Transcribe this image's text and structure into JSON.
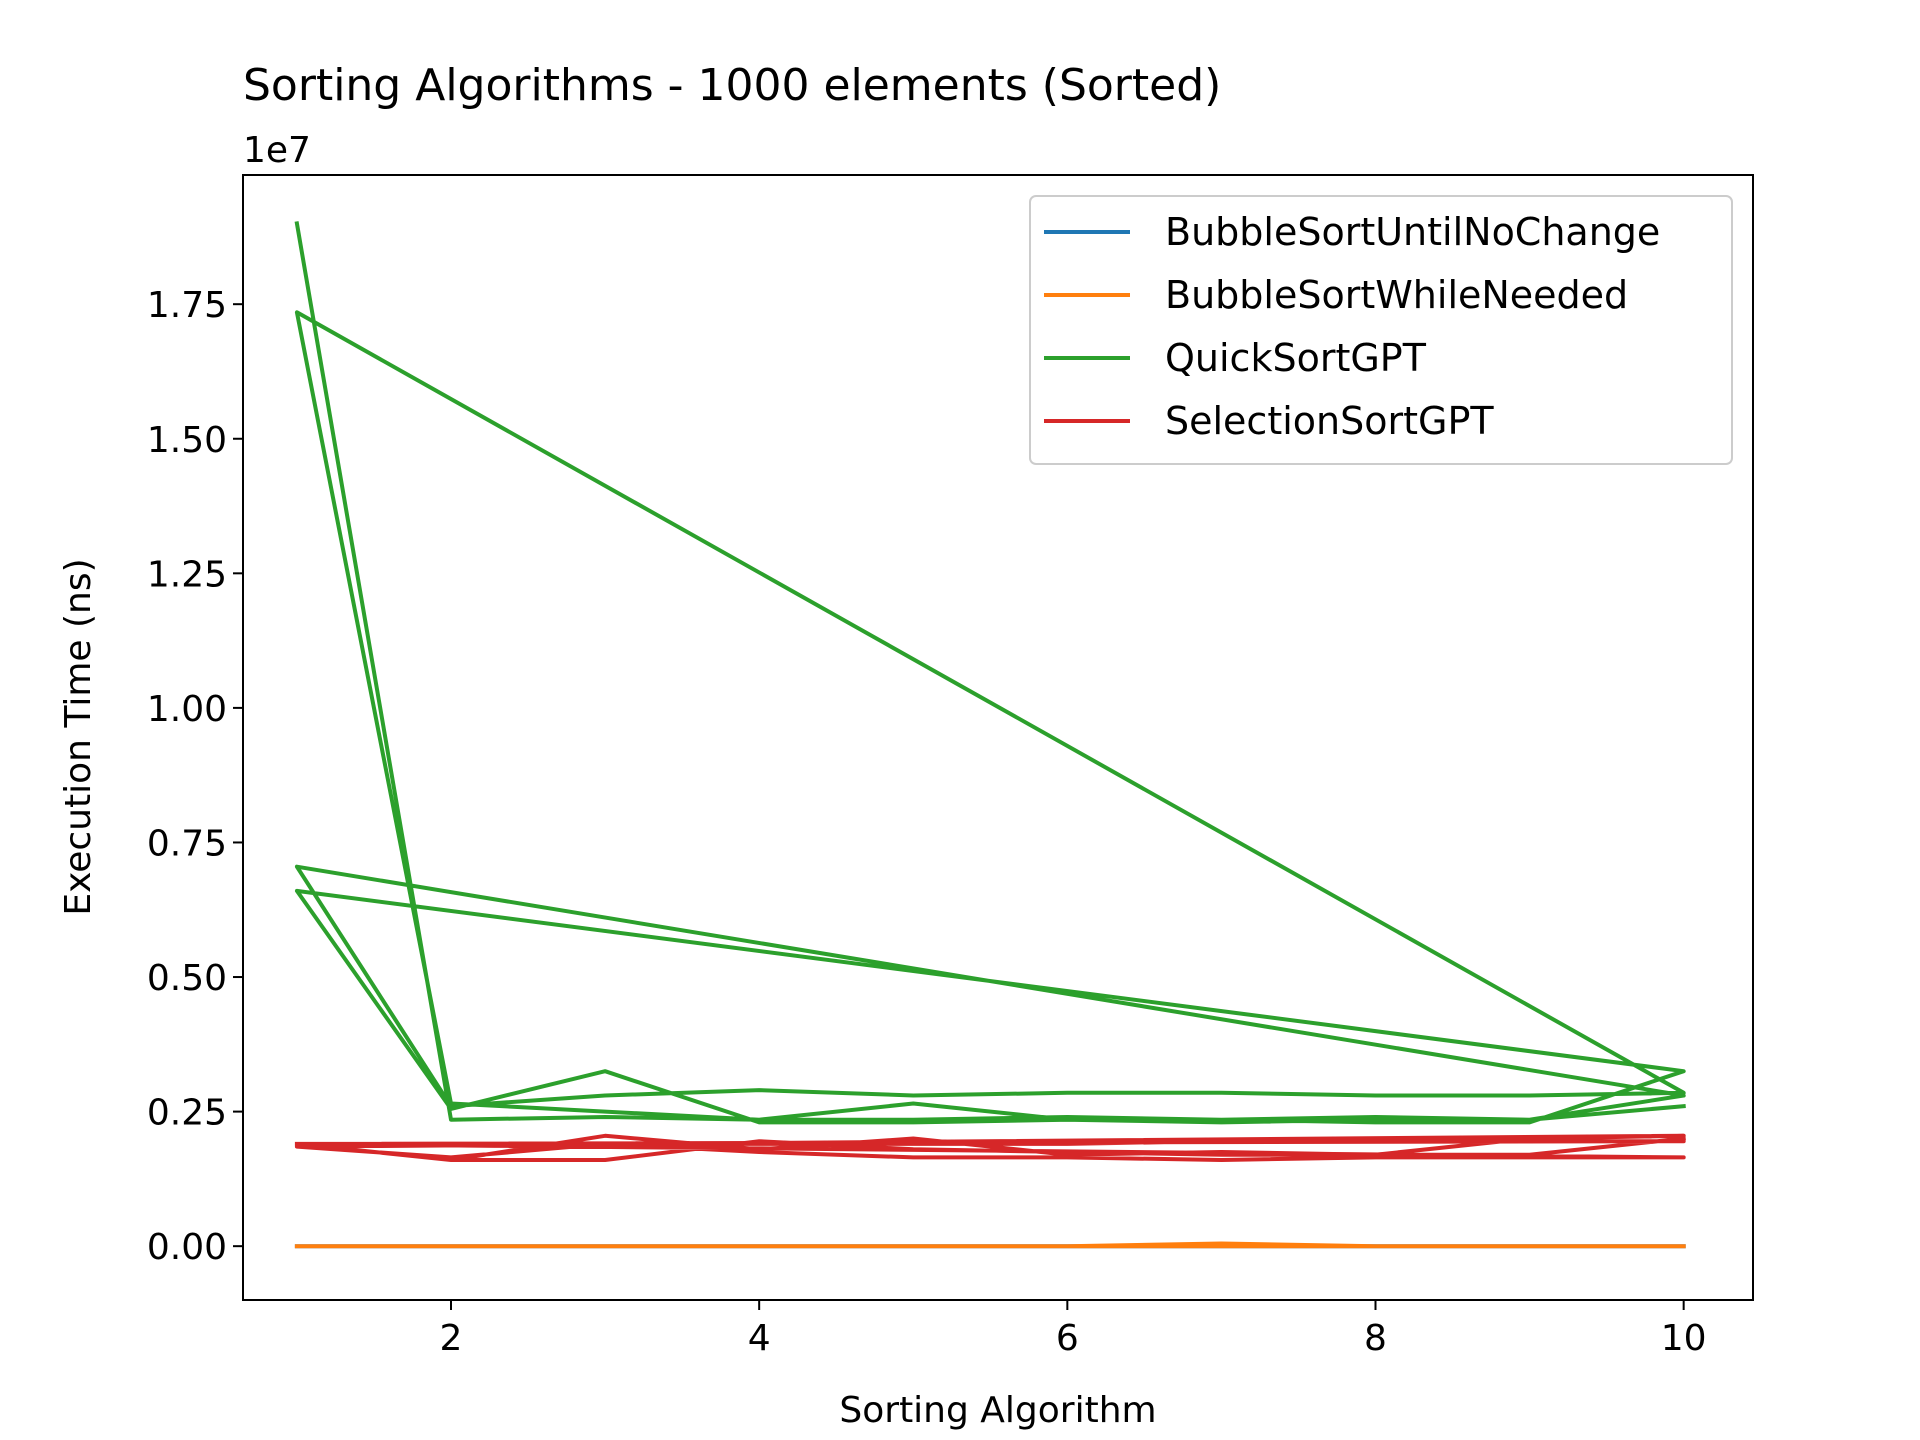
{
  "chart_data": {
    "type": "line",
    "title": "Sorting Algorithms - 1000 elements (Sorted)",
    "xlabel": "Sorting Algorithm",
    "ylabel": "Execution Time (ns)",
    "y_offset_label": "1e7",
    "xlim": [
      0.65,
      10.45
    ],
    "ylim": [
      -0.1,
      1.99
    ],
    "x_ticks": [
      2,
      4,
      6,
      8,
      10
    ],
    "x_tick_labels": [
      "2",
      "4",
      "6",
      "8",
      "10"
    ],
    "y_ticks": [
      0.0,
      0.25,
      0.5,
      0.75,
      1.0,
      1.25,
      1.5,
      1.75
    ],
    "y_tick_labels": [
      "0.00",
      "0.25",
      "0.50",
      "0.75",
      "1.00",
      "1.25",
      "1.50",
      "1.75"
    ],
    "y_unit_multiplier": 10000000,
    "grid": false,
    "legend_position": "top-right",
    "series": [
      {
        "name": "BubbleSortUntilNoChange",
        "color": "#1f77b4",
        "x": [
          1,
          2,
          3,
          4,
          5,
          6,
          7,
          8,
          9,
          10,
          1,
          2,
          3,
          4,
          5,
          6,
          7,
          8,
          9,
          10
        ],
        "y": [
          0.0,
          0.0,
          0.0,
          0.0,
          0.0,
          0.0,
          0.0,
          0.0,
          0.0,
          0.0,
          0.0,
          0.0,
          0.0,
          0.0,
          0.0,
          0.0,
          0.0,
          0.0,
          0.0,
          0.0
        ]
      },
      {
        "name": "BubbleSortWhileNeeded",
        "color": "#ff7f0e",
        "x": [
          1,
          2,
          3,
          4,
          5,
          6,
          7,
          8,
          9,
          10,
          1,
          2,
          3,
          4,
          5,
          6,
          7,
          8,
          9,
          10
        ],
        "y": [
          0.0,
          0.0,
          0.0,
          0.0,
          0.0,
          0.0,
          0.005,
          0.0,
          0.0,
          0.0,
          0.0,
          0.0,
          0.0,
          0.0,
          0.0,
          0.0,
          0.0,
          0.0,
          0.0,
          0.0
        ]
      },
      {
        "name": "QuickSortGPT",
        "color": "#2ca02c",
        "x": [
          1,
          2,
          3,
          4,
          5,
          6,
          7,
          8,
          9,
          10,
          1,
          2,
          3,
          4,
          5,
          6,
          7,
          8,
          9,
          10,
          1,
          2,
          3,
          4,
          5,
          6,
          7,
          8,
          9,
          10,
          1,
          2,
          3,
          4,
          5,
          6,
          7,
          8,
          9,
          10
        ],
        "y": [
          1.9,
          0.235,
          0.24,
          0.235,
          0.235,
          0.24,
          0.235,
          0.24,
          0.235,
          0.28,
          0.705,
          0.26,
          0.28,
          0.29,
          0.28,
          0.285,
          0.285,
          0.28,
          0.28,
          0.285,
          1.735,
          0.265,
          0.25,
          0.235,
          0.265,
          0.235,
          0.235,
          0.23,
          0.23,
          0.325,
          0.66,
          0.255,
          0.325,
          0.23,
          0.23,
          0.235,
          0.23,
          0.235,
          0.235,
          0.26
        ]
      },
      {
        "name": "SelectionSortGPT",
        "color": "#d62728",
        "x": [
          1,
          2,
          3,
          4,
          5,
          6,
          7,
          8,
          9,
          10,
          1,
          2,
          3,
          4,
          5,
          6,
          7,
          8,
          9,
          10,
          1,
          2,
          3,
          4,
          5,
          6,
          7,
          8,
          9,
          10,
          1,
          2,
          3,
          4,
          5,
          6,
          7,
          8,
          9,
          10
        ],
        "y": [
          0.19,
          0.19,
          0.19,
          0.19,
          0.19,
          0.19,
          0.195,
          0.195,
          0.195,
          0.195,
          0.19,
          0.16,
          0.16,
          0.195,
          0.18,
          0.175,
          0.17,
          0.17,
          0.2,
          0.205,
          0.185,
          0.165,
          0.19,
          0.175,
          0.165,
          0.165,
          0.16,
          0.165,
          0.165,
          0.165,
          0.19,
          0.16,
          0.205,
          0.18,
          0.2,
          0.17,
          0.175,
          0.17,
          0.17,
          0.2
        ]
      }
    ]
  }
}
